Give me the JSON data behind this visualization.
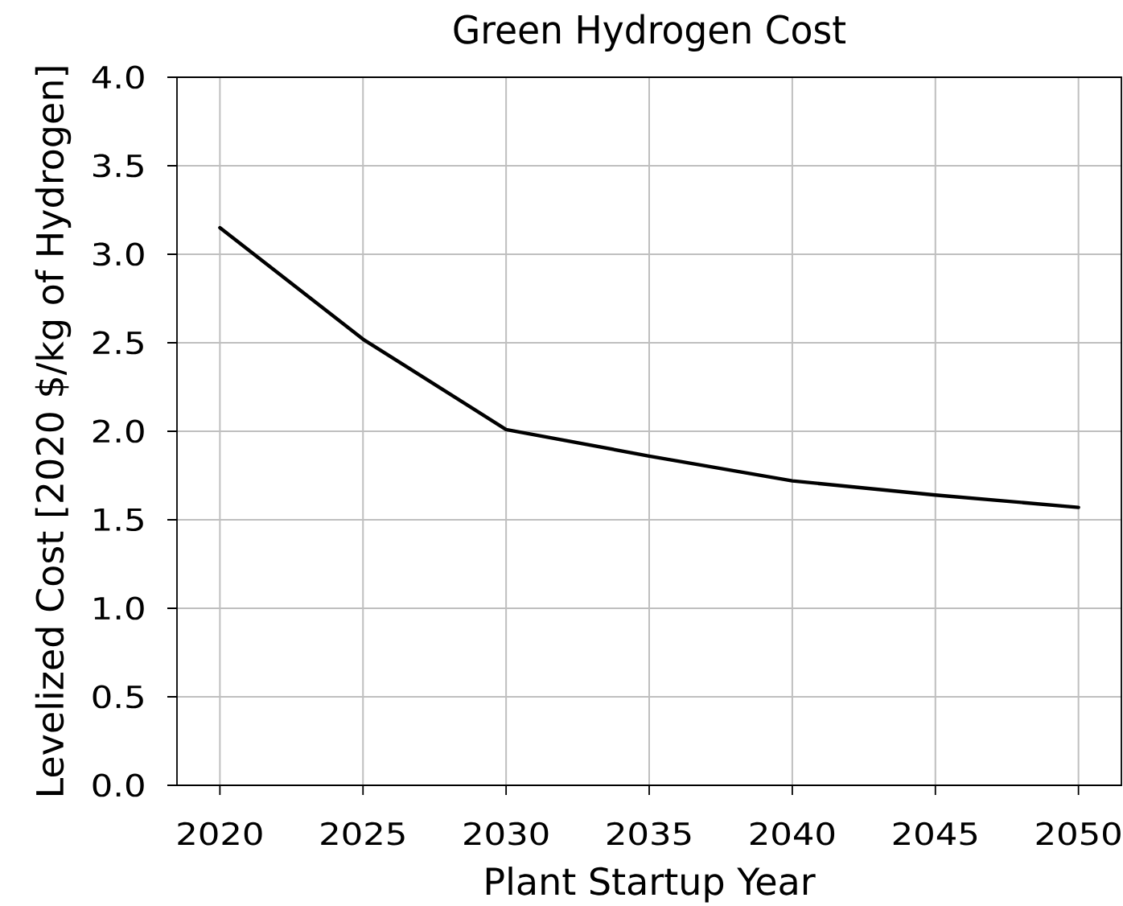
{
  "chart_data": {
    "type": "line",
    "title": "Green Hydrogen Cost",
    "xlabel": "Plant Startup Year",
    "ylabel": "Levelized Cost [2020 $/kg of Hydrogen]",
    "x": [
      2020,
      2025,
      2030,
      2035,
      2040,
      2045,
      2050
    ],
    "series": [
      {
        "color": "#000000",
        "values": [
          3.15,
          2.52,
          2.01,
          1.86,
          1.72,
          1.64,
          1.57
        ]
      }
    ],
    "xlim": [
      2018.5,
      2051.5
    ],
    "ylim": [
      0,
      4
    ],
    "xticks": [
      2020,
      2025,
      2030,
      2035,
      2040,
      2045,
      2050
    ],
    "yticks": [
      {
        "value": 0,
        "label": "0.0"
      },
      {
        "value": 0.5,
        "label": "0.5"
      },
      {
        "value": 1,
        "label": "1.0"
      },
      {
        "value": 1.5,
        "label": "1.5"
      },
      {
        "value": 2,
        "label": "2.0"
      },
      {
        "value": 2.5,
        "label": "2.5"
      },
      {
        "value": 3,
        "label": "3.0"
      },
      {
        "value": 3.5,
        "label": "3.5"
      },
      {
        "value": 4,
        "label": "4.0"
      }
    ],
    "grid": true,
    "marker": "none",
    "line_style": "solid"
  }
}
